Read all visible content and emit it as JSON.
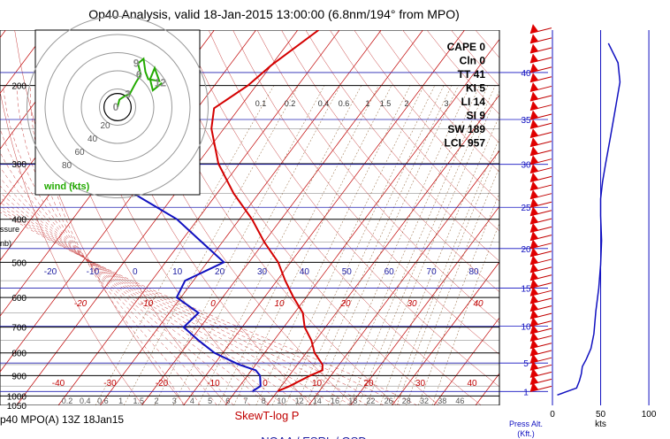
{
  "title": "Op40 Analysis, valid 18-Jan-2015 13:00:00 (6.8nm/194° from MPO)",
  "footer": {
    "left": "p40 MPO(A) 13Z 18Jan15",
    "center": "SkewT-log P",
    "bottom": "NOAA / ESRL / GSD"
  },
  "indices": [
    {
      "label": "CAPE 0"
    },
    {
      "label": "Cln 0"
    },
    {
      "label": "TT 41"
    },
    {
      "label": "KI 5"
    },
    {
      "label": "LI 14"
    },
    {
      "label": "SI 9"
    },
    {
      "label": "SW 189"
    },
    {
      "label": "LCL 957"
    }
  ],
  "colors": {
    "temperature": "#d40000",
    "dewpoint": "#1010c0",
    "hodograph": "#22aa00",
    "isobar": "#000000",
    "isotherm": "#c00000",
    "wind_axis": "#1010c0"
  },
  "chart_data": [
    {
      "type": "line",
      "name": "skewt",
      "title": "SkewT-log P",
      "ylabel_lines": [
        "ssure",
        "nb)"
      ],
      "pressure_labels": [
        200,
        300,
        400,
        500,
        600,
        700,
        800,
        900,
        1000,
        1050
      ],
      "temp_labels_upper": [
        "-20",
        "-10",
        "0",
        "10",
        "20",
        "30",
        "40",
        "50",
        "60",
        "70",
        "80"
      ],
      "temp_labels_mid": [
        "-20",
        "-10",
        "0",
        "10",
        "20",
        "30",
        "40"
      ],
      "temp_labels_low": [
        "-40",
        "-30",
        "-20",
        "-10",
        "0",
        "10",
        "20",
        "30",
        "40"
      ],
      "mixing_ratio_labels": [
        "0.1",
        "0.2",
        "0.4",
        "0.6",
        "1",
        "1.5",
        "2",
        "3"
      ],
      "mixing_ratio_labels_bottom": [
        "0.2",
        "0.4",
        "0.6",
        "1",
        "1.5",
        "2",
        "3",
        "4",
        "5",
        "6",
        "7",
        "8",
        "10",
        "12",
        "14",
        "16",
        "18",
        "22",
        "26",
        "28",
        "32",
        "38",
        "46"
      ],
      "temperature_profile": [
        [
          150,
          -55
        ],
        [
          180,
          -60
        ],
        [
          200,
          -62
        ],
        [
          225,
          -66
        ],
        [
          250,
          -63
        ],
        [
          300,
          -55
        ],
        [
          350,
          -46
        ],
        [
          400,
          -37
        ],
        [
          450,
          -30
        ],
        [
          500,
          -23
        ],
        [
          550,
          -18
        ],
        [
          600,
          -13
        ],
        [
          650,
          -8
        ],
        [
          700,
          -5
        ],
        [
          750,
          -1
        ],
        [
          800,
          2
        ],
        [
          850,
          6
        ],
        [
          875,
          7
        ],
        [
          900,
          5
        ],
        [
          950,
          2
        ],
        [
          975,
          0
        ]
      ],
      "dewpoint_profile": [
        [
          150,
          -85
        ],
        [
          180,
          -87
        ],
        [
          200,
          -88
        ],
        [
          250,
          -85
        ],
        [
          300,
          -80
        ],
        [
          350,
          -70
        ],
        [
          400,
          -55
        ],
        [
          450,
          -45
        ],
        [
          500,
          -36
        ],
        [
          550,
          -42
        ],
        [
          600,
          -41
        ],
        [
          650,
          -33
        ],
        [
          700,
          -34
        ],
        [
          750,
          -28
        ],
        [
          800,
          -22
        ],
        [
          850,
          -14
        ],
        [
          875,
          -9
        ],
        [
          900,
          -7
        ],
        [
          950,
          -5
        ],
        [
          975,
          -6
        ]
      ]
    },
    {
      "type": "scatter",
      "name": "wind_barbs",
      "xlabel": "Press Alt. (Kft.)",
      "altitude_ticks": [
        1,
        5,
        10,
        15,
        20,
        25,
        30,
        35,
        40
      ],
      "barb_altitudes_kft": [
        1,
        2,
        3,
        4,
        5,
        6,
        7,
        8,
        9,
        10,
        11,
        12,
        13,
        14,
        15,
        16,
        17,
        18,
        19,
        20,
        21,
        22,
        23,
        24,
        25,
        26,
        27,
        28,
        29,
        30,
        31,
        32,
        33,
        34,
        35,
        36,
        37,
        38,
        39,
        40,
        41,
        42,
        43,
        44,
        45
      ]
    },
    {
      "type": "line",
      "name": "wind_speed_profile",
      "xlabel": "kts",
      "xticks": [
        "0",
        "50",
        "100"
      ],
      "xlim": [
        0,
        110
      ],
      "ylim": [
        0,
        47
      ],
      "points": [
        [
          5,
          0.5
        ],
        [
          15,
          1
        ],
        [
          25,
          1.5
        ],
        [
          28,
          2.5
        ],
        [
          30,
          3.5
        ],
        [
          31,
          4.5
        ],
        [
          35,
          5.5
        ],
        [
          40,
          7
        ],
        [
          43,
          9
        ],
        [
          45,
          12
        ],
        [
          48,
          15
        ],
        [
          50,
          18
        ],
        [
          51,
          21
        ],
        [
          50,
          24
        ],
        [
          50,
          26
        ],
        [
          52,
          28
        ],
        [
          55,
          30
        ],
        [
          60,
          33
        ],
        [
          65,
          36
        ],
        [
          70,
          39
        ],
        [
          68,
          41
        ],
        [
          58,
          43
        ],
        [
          52,
          45
        ],
        [
          50,
          47
        ]
      ]
    },
    {
      "type": "line",
      "name": "hodograph",
      "legend": "wind (kts)",
      "ring_labels": [
        "20",
        "40",
        "60",
        "80"
      ],
      "point_labels": [
        "0",
        "3",
        "9",
        "6",
        "12"
      ],
      "points": [
        [
          0,
          0
        ],
        [
          2,
          8
        ],
        [
          8,
          12
        ],
        [
          13,
          14
        ],
        [
          20,
          27
        ],
        [
          25,
          35
        ],
        [
          22,
          47
        ],
        [
          28,
          52
        ],
        [
          30,
          38
        ],
        [
          33,
          30
        ],
        [
          45,
          28
        ],
        [
          40,
          42
        ],
        [
          35,
          30
        ],
        [
          38,
          18
        ],
        [
          48,
          26
        ]
      ]
    }
  ]
}
